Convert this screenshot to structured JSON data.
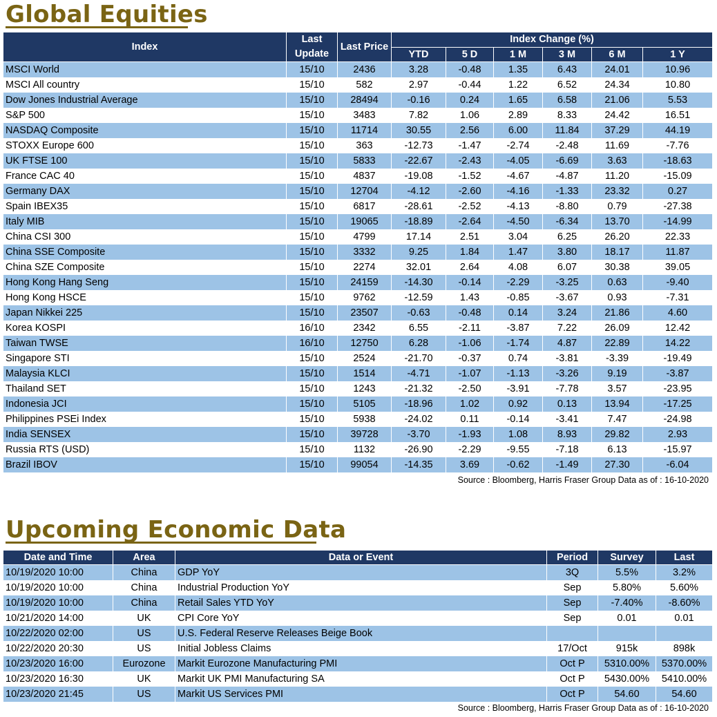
{
  "equities": {
    "title": "Global Equities",
    "headers": {
      "index": "Index",
      "last_update": "Last Update",
      "last_price": "Last Price",
      "index_change": "Index Change (%)",
      "ytd": "YTD",
      "d5": "5 D",
      "m1": "1 M",
      "m3": "3 M",
      "m6": "6 M",
      "y1": "1 Y"
    },
    "rows": [
      [
        "MSCI World",
        "15/10",
        "2436",
        "3.28",
        "-0.48",
        "1.35",
        "6.43",
        "24.01",
        "10.96"
      ],
      [
        "MSCI All country",
        "15/10",
        "582",
        "2.97",
        "-0.44",
        "1.22",
        "6.52",
        "24.34",
        "10.80"
      ],
      [
        "Dow Jones Industrial Average",
        "15/10",
        "28494",
        "-0.16",
        "0.24",
        "1.65",
        "6.58",
        "21.06",
        "5.53"
      ],
      [
        "S&P 500",
        "15/10",
        "3483",
        "7.82",
        "1.06",
        "2.89",
        "8.33",
        "24.42",
        "16.51"
      ],
      [
        "NASDAQ Composite",
        "15/10",
        "11714",
        "30.55",
        "2.56",
        "6.00",
        "11.84",
        "37.29",
        "44.19"
      ],
      [
        "STOXX Europe 600",
        "15/10",
        "363",
        "-12.73",
        "-1.47",
        "-2.74",
        "-2.48",
        "11.69",
        "-7.76"
      ],
      [
        "UK FTSE 100",
        "15/10",
        "5833",
        "-22.67",
        "-2.43",
        "-4.05",
        "-6.69",
        "3.63",
        "-18.63"
      ],
      [
        "France CAC 40",
        "15/10",
        "4837",
        "-19.08",
        "-1.52",
        "-4.67",
        "-4.87",
        "11.20",
        "-15.09"
      ],
      [
        "Germany DAX",
        "15/10",
        "12704",
        "-4.12",
        "-2.60",
        "-4.16",
        "-1.33",
        "23.32",
        "0.27"
      ],
      [
        "Spain IBEX35",
        "15/10",
        "6817",
        "-28.61",
        "-2.52",
        "-4.13",
        "-8.80",
        "0.79",
        "-27.38"
      ],
      [
        "Italy MIB",
        "15/10",
        "19065",
        "-18.89",
        "-2.64",
        "-4.50",
        "-6.34",
        "13.70",
        "-14.99"
      ],
      [
        "China CSI 300",
        "15/10",
        "4799",
        "17.14",
        "2.51",
        "3.04",
        "6.25",
        "26.20",
        "22.33"
      ],
      [
        "China SSE Composite",
        "15/10",
        "3332",
        "9.25",
        "1.84",
        "1.47",
        "3.80",
        "18.17",
        "11.87"
      ],
      [
        "China SZE Composite",
        "15/10",
        "2274",
        "32.01",
        "2.64",
        "4.08",
        "6.07",
        "30.38",
        "39.05"
      ],
      [
        "Hong Kong Hang Seng",
        "15/10",
        "24159",
        "-14.30",
        "-0.14",
        "-2.29",
        "-3.25",
        "0.63",
        "-9.40"
      ],
      [
        "Hong Kong HSCE",
        "15/10",
        "9762",
        "-12.59",
        "1.43",
        "-0.85",
        "-3.67",
        "0.93",
        "-7.31"
      ],
      [
        "Japan Nikkei 225",
        "15/10",
        "23507",
        "-0.63",
        "-0.48",
        "0.14",
        "3.24",
        "21.86",
        "4.60"
      ],
      [
        "Korea KOSPI",
        "16/10",
        "2342",
        "6.55",
        "-2.11",
        "-3.87",
        "7.22",
        "26.09",
        "12.42"
      ],
      [
        "Taiwan TWSE",
        "16/10",
        "12750",
        "6.28",
        "-1.06",
        "-1.74",
        "4.87",
        "22.89",
        "14.22"
      ],
      [
        "Singapore STI",
        "15/10",
        "2524",
        "-21.70",
        "-0.37",
        "0.74",
        "-3.81",
        "-3.39",
        "-19.49"
      ],
      [
        "Malaysia KLCI",
        "15/10",
        "1514",
        "-4.71",
        "-1.07",
        "-1.13",
        "-3.26",
        "9.19",
        "-3.87"
      ],
      [
        "Thailand SET",
        "15/10",
        "1243",
        "-21.32",
        "-2.50",
        "-3.91",
        "-7.78",
        "3.57",
        "-23.95"
      ],
      [
        "Indonesia JCI",
        "15/10",
        "5105",
        "-18.96",
        "1.02",
        "0.92",
        "0.13",
        "13.94",
        "-17.25"
      ],
      [
        "Philippines PSEi Index",
        "15/10",
        "5938",
        "-24.02",
        "0.11",
        "-0.14",
        "-3.41",
        "7.47",
        "-24.98"
      ],
      [
        "India SENSEX",
        "15/10",
        "39728",
        "-3.70",
        "-1.93",
        "1.08",
        "8.93",
        "29.82",
        "2.93"
      ],
      [
        "Russia RTS (USD)",
        "15/10",
        "1132",
        "-26.90",
        "-2.29",
        "-9.55",
        "-7.18",
        "6.13",
        "-15.97"
      ],
      [
        "Brazil IBOV",
        "15/10",
        "99054",
        "-14.35",
        "3.69",
        "-0.62",
        "-1.49",
        "27.30",
        "-6.04"
      ]
    ],
    "source": "Source : Bloomberg, Harris Fraser Group Data as of : 16-10-2020"
  },
  "economic": {
    "title": "Upcoming Economic Data",
    "headers": {
      "date_time": "Date and Time",
      "area": "Area",
      "event": "Data or Event",
      "period": "Period",
      "survey": "Survey",
      "last": "Last"
    },
    "rows": [
      [
        "10/19/2020 10:00",
        "China",
        "GDP YoY",
        "3Q",
        "5.5%",
        "3.2%"
      ],
      [
        "10/19/2020 10:00",
        "China",
        "Industrial Production YoY",
        "Sep",
        "5.80%",
        "5.60%"
      ],
      [
        "10/19/2020 10:00",
        "China",
        "Retail Sales YTD YoY",
        "Sep",
        "-7.40%",
        "-8.60%"
      ],
      [
        "10/21/2020 14:00",
        "UK",
        "CPI Core YoY",
        "Sep",
        "0.01",
        "0.01"
      ],
      [
        "10/22/2020 02:00",
        "US",
        "U.S. Federal Reserve Releases Beige Book",
        "",
        "",
        ""
      ],
      [
        "10/22/2020 20:30",
        "US",
        "Initial Jobless Claims",
        "17/Oct",
        "915k",
        "898k"
      ],
      [
        "10/23/2020 16:00",
        "Eurozone",
        "Markit Eurozone Manufacturing PMI",
        "Oct P",
        "5310.00%",
        "5370.00%"
      ],
      [
        "10/23/2020 16:30",
        "UK",
        "Markit UK PMI Manufacturing SA",
        "Oct P",
        "5430.00%",
        "5410.00%"
      ],
      [
        "10/23/2020 21:45",
        "US",
        "Markit US Services PMI",
        "Oct P",
        "54.60",
        "54.60"
      ]
    ],
    "source": "Source : Bloomberg, Harris Fraser Group Data as of : 16-10-2020"
  }
}
